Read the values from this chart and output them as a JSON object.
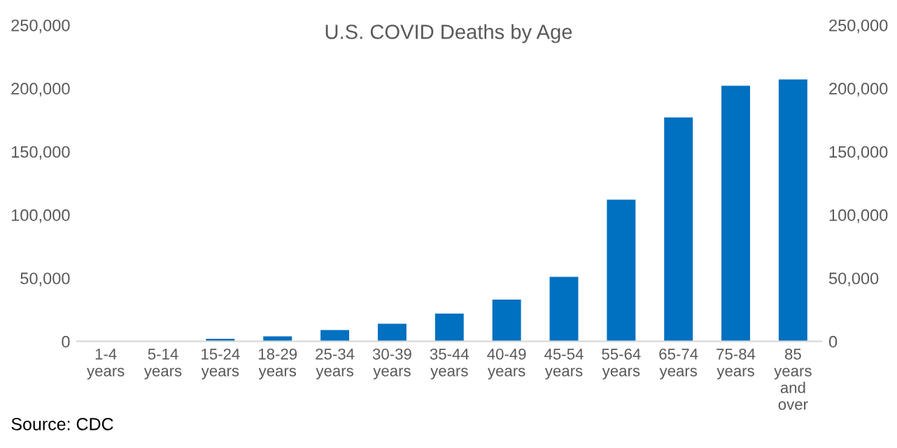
{
  "chart_data": {
    "type": "bar",
    "title": "U.S. COVID Deaths by Age",
    "categories": [
      "1-4\nyears",
      "5-14\nyears",
      "15-24\nyears",
      "18-29\nyears",
      "25-34\nyears",
      "30-39\nyears",
      "35-44\nyears",
      "40-49\nyears",
      "45-54\nyears",
      "55-64\nyears",
      "65-74\nyears",
      "75-84\nyears",
      "85\nyears\nand\nover"
    ],
    "values": [
      0,
      0,
      2000,
      4000,
      9000,
      14000,
      22000,
      33000,
      51000,
      112000,
      177000,
      202000,
      207000
    ],
    "color": "#0070c0",
    "ylim": [
      0,
      250000
    ],
    "yticks": [
      {
        "value": 0,
        "label": "0"
      },
      {
        "value": 50000,
        "label": "50,000"
      },
      {
        "value": 100000,
        "label": "100,000"
      },
      {
        "value": 150000,
        "label": "150,000"
      },
      {
        "value": 200000,
        "label": "200,000"
      },
      {
        "value": 250000,
        "label": "250,000"
      }
    ],
    "y2lim": [
      0,
      250000
    ],
    "y2ticks": [
      {
        "value": 0,
        "label": "0"
      },
      {
        "value": 50000,
        "label": "50,000"
      },
      {
        "value": 100000,
        "label": "100,000"
      },
      {
        "value": 150000,
        "label": "150,000"
      },
      {
        "value": 200000,
        "label": "200,000"
      },
      {
        "value": 250000,
        "label": "250,000"
      }
    ],
    "grid": false,
    "annotations": [
      "Source: CDC"
    ]
  }
}
